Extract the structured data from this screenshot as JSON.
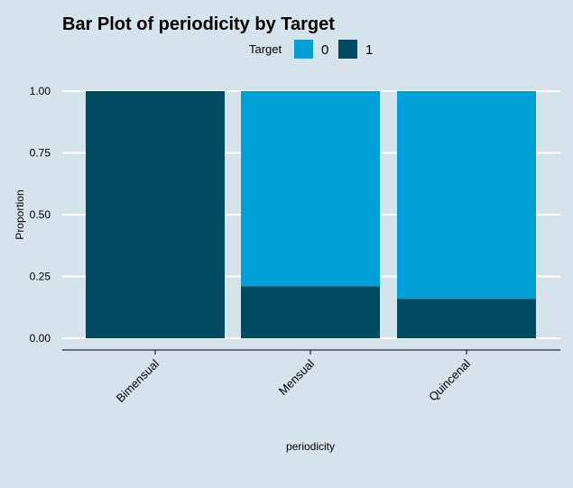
{
  "chart_data": {
    "type": "bar",
    "stacked": true,
    "title": "Bar Plot of periodicity by Target",
    "xlabel": "periodicity",
    "ylabel": "Proportion",
    "categories": [
      "Bimensual",
      "Mensual",
      "Quincenal"
    ],
    "ylim": [
      0,
      1
    ],
    "yticks": [
      "0.00",
      "0.25",
      "0.50",
      "0.75",
      "1.00"
    ],
    "ytick_values": [
      0,
      0.25,
      0.5,
      0.75,
      1
    ],
    "legend_title": "Target",
    "legend_position": "top",
    "grid": true,
    "series": [
      {
        "name": "0",
        "color": "#00A0D8",
        "values": [
          0.0,
          0.79,
          0.84
        ]
      },
      {
        "name": "1",
        "color": "#004B62",
        "values": [
          1.0,
          0.21,
          0.16
        ]
      }
    ],
    "background": "#D5E4EB",
    "gridline_color": "#FFFFFF"
  }
}
